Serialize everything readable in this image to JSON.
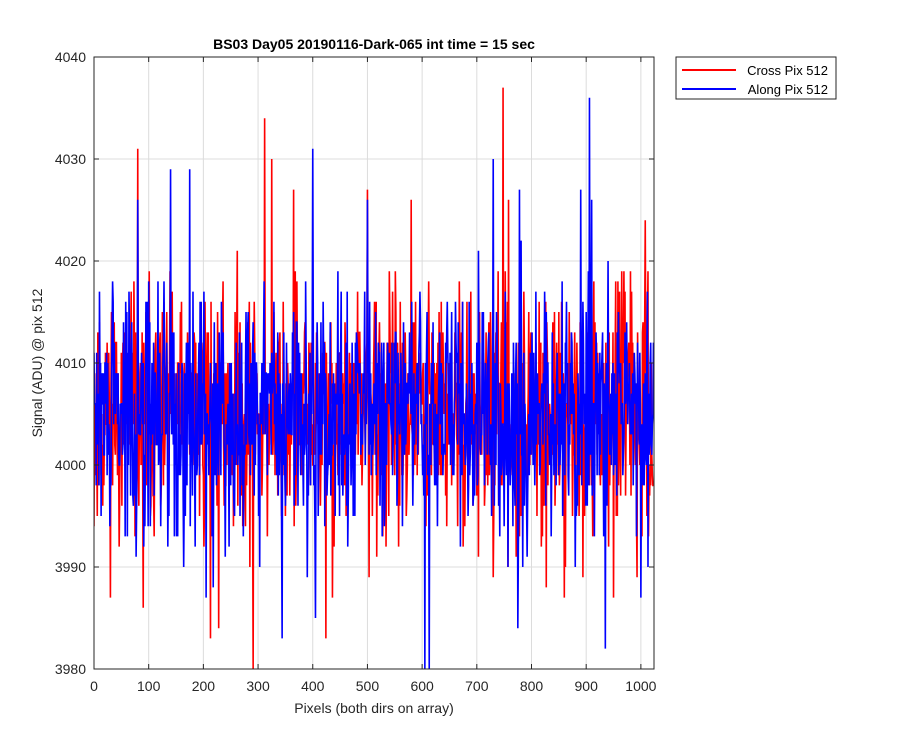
{
  "chart_data": {
    "type": "line",
    "title": "BS03 Day05 20190116-Dark-065 int time = 15 sec",
    "xlabel": "Pixels (both dirs on array)",
    "ylabel": "Signal (ADU) @ pix 512",
    "xlim": [
      0,
      1024
    ],
    "ylim": [
      3980,
      4040
    ],
    "xticks": [
      0,
      100,
      200,
      300,
      400,
      500,
      600,
      700,
      800,
      900,
      1000
    ],
    "yticks": [
      3980,
      3990,
      4000,
      4010,
      4020,
      4030,
      4040
    ],
    "grid": true,
    "legend_position": "outside top-right",
    "n_points": 1024,
    "series": [
      {
        "name": "Cross Pix 512",
        "color": "#ff0000",
        "mean": 4005,
        "std": 6,
        "seed": 11,
        "features": [
          [
            80,
            4031
          ],
          [
            90,
            3986
          ],
          [
            213,
            3983
          ],
          [
            228,
            3984
          ],
          [
            291,
            3980
          ],
          [
            312,
            4034
          ],
          [
            325,
            4030
          ],
          [
            365,
            4027
          ],
          [
            424,
            3983
          ],
          [
            436,
            3987
          ],
          [
            500,
            4027
          ],
          [
            517,
            3991
          ],
          [
            580,
            4026
          ],
          [
            730,
            3989
          ],
          [
            748,
            4037
          ],
          [
            758,
            4026
          ],
          [
            860,
            3987
          ],
          [
            950,
            3987
          ],
          [
            993,
            3989
          ],
          [
            1008,
            4024
          ]
        ]
      },
      {
        "name": "Along Pix 512",
        "color": "#0000ff",
        "mean": 4005,
        "std": 6,
        "seed": 29,
        "features": [
          [
            80,
            4026
          ],
          [
            140,
            4029
          ],
          [
            175,
            4029
          ],
          [
            205,
            3987
          ],
          [
            218,
            3988
          ],
          [
            344,
            3983
          ],
          [
            400,
            4031
          ],
          [
            405,
            3985
          ],
          [
            500,
            4026
          ],
          [
            605,
            3980
          ],
          [
            613,
            3980
          ],
          [
            730,
            4030
          ],
          [
            775,
            3984
          ],
          [
            778,
            4027
          ],
          [
            880,
            3990
          ],
          [
            890,
            4027
          ],
          [
            906,
            4036
          ],
          [
            910,
            4026
          ],
          [
            935,
            3982
          ],
          [
            1000,
            3987
          ]
        ]
      }
    ]
  }
}
